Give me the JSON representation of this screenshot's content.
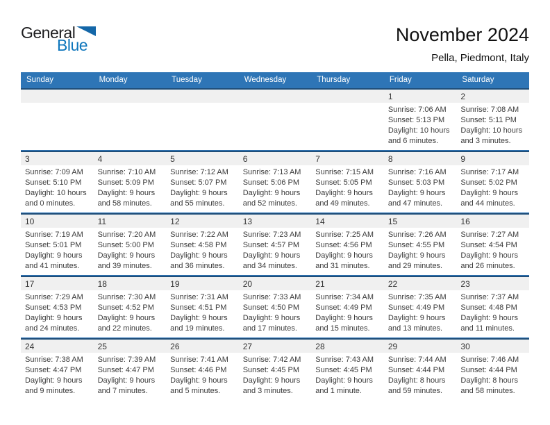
{
  "logo": {
    "general": "General",
    "blue": "Blue"
  },
  "header": {
    "title": "November 2024",
    "subtitle": "Pella, Piedmont, Italy"
  },
  "weekdays": [
    "Sunday",
    "Monday",
    "Tuesday",
    "Wednesday",
    "Thursday",
    "Friday",
    "Saturday"
  ],
  "colors": {
    "header_blue": "#2E75B6",
    "divider_dark": "#1F4E79",
    "divider_light": "#2E75B6",
    "band_gray": "#F0F0F0",
    "logo_blue": "#0E76BC",
    "text_dark": "#262626"
  },
  "weeks": [
    [
      {
        "day": "",
        "lines": []
      },
      {
        "day": "",
        "lines": []
      },
      {
        "day": "",
        "lines": []
      },
      {
        "day": "",
        "lines": []
      },
      {
        "day": "",
        "lines": []
      },
      {
        "day": "1",
        "lines": [
          "Sunrise: 7:06 AM",
          "Sunset: 5:13 PM",
          "Daylight: 10 hours",
          "and 6 minutes."
        ]
      },
      {
        "day": "2",
        "lines": [
          "Sunrise: 7:08 AM",
          "Sunset: 5:11 PM",
          "Daylight: 10 hours",
          "and 3 minutes."
        ]
      }
    ],
    [
      {
        "day": "3",
        "lines": [
          "Sunrise: 7:09 AM",
          "Sunset: 5:10 PM",
          "Daylight: 10 hours",
          "and 0 minutes."
        ]
      },
      {
        "day": "4",
        "lines": [
          "Sunrise: 7:10 AM",
          "Sunset: 5:09 PM",
          "Daylight: 9 hours",
          "and 58 minutes."
        ]
      },
      {
        "day": "5",
        "lines": [
          "Sunrise: 7:12 AM",
          "Sunset: 5:07 PM",
          "Daylight: 9 hours",
          "and 55 minutes."
        ]
      },
      {
        "day": "6",
        "lines": [
          "Sunrise: 7:13 AM",
          "Sunset: 5:06 PM",
          "Daylight: 9 hours",
          "and 52 minutes."
        ]
      },
      {
        "day": "7",
        "lines": [
          "Sunrise: 7:15 AM",
          "Sunset: 5:05 PM",
          "Daylight: 9 hours",
          "and 49 minutes."
        ]
      },
      {
        "day": "8",
        "lines": [
          "Sunrise: 7:16 AM",
          "Sunset: 5:03 PM",
          "Daylight: 9 hours",
          "and 47 minutes."
        ]
      },
      {
        "day": "9",
        "lines": [
          "Sunrise: 7:17 AM",
          "Sunset: 5:02 PM",
          "Daylight: 9 hours",
          "and 44 minutes."
        ]
      }
    ],
    [
      {
        "day": "10",
        "lines": [
          "Sunrise: 7:19 AM",
          "Sunset: 5:01 PM",
          "Daylight: 9 hours",
          "and 41 minutes."
        ]
      },
      {
        "day": "11",
        "lines": [
          "Sunrise: 7:20 AM",
          "Sunset: 5:00 PM",
          "Daylight: 9 hours",
          "and 39 minutes."
        ]
      },
      {
        "day": "12",
        "lines": [
          "Sunrise: 7:22 AM",
          "Sunset: 4:58 PM",
          "Daylight: 9 hours",
          "and 36 minutes."
        ]
      },
      {
        "day": "13",
        "lines": [
          "Sunrise: 7:23 AM",
          "Sunset: 4:57 PM",
          "Daylight: 9 hours",
          "and 34 minutes."
        ]
      },
      {
        "day": "14",
        "lines": [
          "Sunrise: 7:25 AM",
          "Sunset: 4:56 PM",
          "Daylight: 9 hours",
          "and 31 minutes."
        ]
      },
      {
        "day": "15",
        "lines": [
          "Sunrise: 7:26 AM",
          "Sunset: 4:55 PM",
          "Daylight: 9 hours",
          "and 29 minutes."
        ]
      },
      {
        "day": "16",
        "lines": [
          "Sunrise: 7:27 AM",
          "Sunset: 4:54 PM",
          "Daylight: 9 hours",
          "and 26 minutes."
        ]
      }
    ],
    [
      {
        "day": "17",
        "lines": [
          "Sunrise: 7:29 AM",
          "Sunset: 4:53 PM",
          "Daylight: 9 hours",
          "and 24 minutes."
        ]
      },
      {
        "day": "18",
        "lines": [
          "Sunrise: 7:30 AM",
          "Sunset: 4:52 PM",
          "Daylight: 9 hours",
          "and 22 minutes."
        ]
      },
      {
        "day": "19",
        "lines": [
          "Sunrise: 7:31 AM",
          "Sunset: 4:51 PM",
          "Daylight: 9 hours",
          "and 19 minutes."
        ]
      },
      {
        "day": "20",
        "lines": [
          "Sunrise: 7:33 AM",
          "Sunset: 4:50 PM",
          "Daylight: 9 hours",
          "and 17 minutes."
        ]
      },
      {
        "day": "21",
        "lines": [
          "Sunrise: 7:34 AM",
          "Sunset: 4:49 PM",
          "Daylight: 9 hours",
          "and 15 minutes."
        ]
      },
      {
        "day": "22",
        "lines": [
          "Sunrise: 7:35 AM",
          "Sunset: 4:49 PM",
          "Daylight: 9 hours",
          "and 13 minutes."
        ]
      },
      {
        "day": "23",
        "lines": [
          "Sunrise: 7:37 AM",
          "Sunset: 4:48 PM",
          "Daylight: 9 hours",
          "and 11 minutes."
        ]
      }
    ],
    [
      {
        "day": "24",
        "lines": [
          "Sunrise: 7:38 AM",
          "Sunset: 4:47 PM",
          "Daylight: 9 hours",
          "and 9 minutes."
        ]
      },
      {
        "day": "25",
        "lines": [
          "Sunrise: 7:39 AM",
          "Sunset: 4:47 PM",
          "Daylight: 9 hours",
          "and 7 minutes."
        ]
      },
      {
        "day": "26",
        "lines": [
          "Sunrise: 7:41 AM",
          "Sunset: 4:46 PM",
          "Daylight: 9 hours",
          "and 5 minutes."
        ]
      },
      {
        "day": "27",
        "lines": [
          "Sunrise: 7:42 AM",
          "Sunset: 4:45 PM",
          "Daylight: 9 hours",
          "and 3 minutes."
        ]
      },
      {
        "day": "28",
        "lines": [
          "Sunrise: 7:43 AM",
          "Sunset: 4:45 PM",
          "Daylight: 9 hours",
          "and 1 minute."
        ]
      },
      {
        "day": "29",
        "lines": [
          "Sunrise: 7:44 AM",
          "Sunset: 4:44 PM",
          "Daylight: 8 hours",
          "and 59 minutes."
        ]
      },
      {
        "day": "30",
        "lines": [
          "Sunrise: 7:46 AM",
          "Sunset: 4:44 PM",
          "Daylight: 8 hours",
          "and 58 minutes."
        ]
      }
    ]
  ]
}
